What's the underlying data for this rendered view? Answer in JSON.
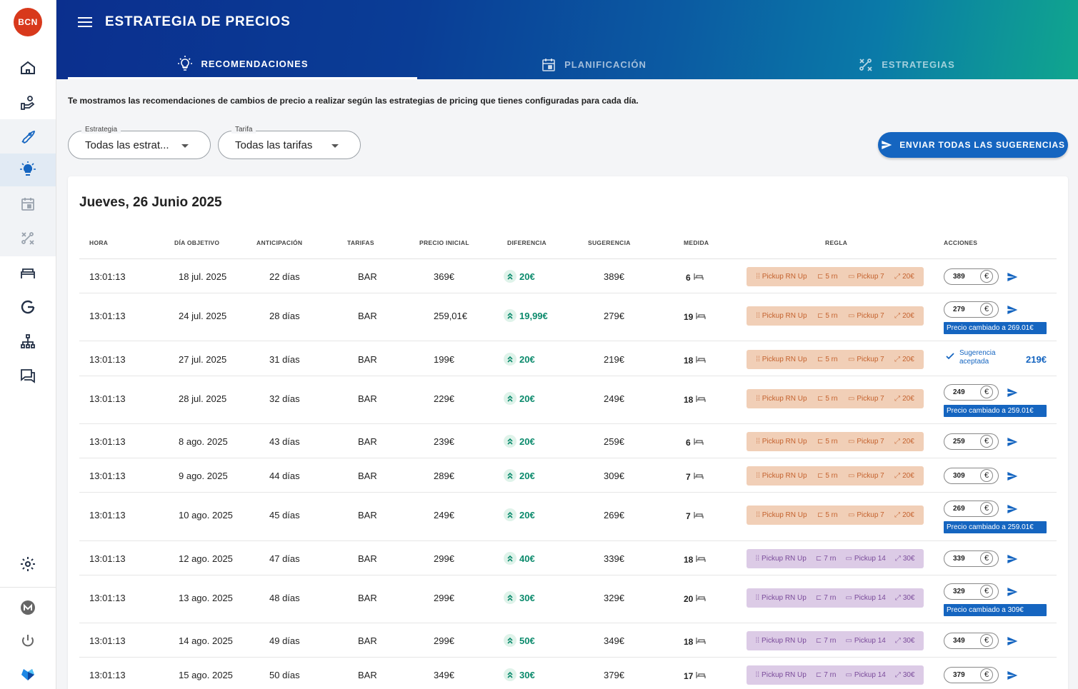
{
  "sidebar": {
    "avatar": "BCN",
    "items": [
      "home-icon",
      "hand-money-icon",
      "rocket-icon",
      "lightbulb-icon",
      "calendar-icon",
      "strategy-icon",
      "bed-icon",
      "google-icon",
      "sitemap-icon",
      "chat-icon"
    ],
    "bottom": [
      "gear-icon",
      "m-logo-icon",
      "power-icon",
      "brand-logo-icon"
    ]
  },
  "header": {
    "title": "ESTRATEGIA DE PRECIOS",
    "tabs": [
      {
        "label": "RECOMENDACIONES",
        "icon": "lightbulb-icon"
      },
      {
        "label": "PLANIFICACIÓN",
        "icon": "calendar-icon"
      },
      {
        "label": "ESTRATEGIAS",
        "icon": "strategy-icon"
      }
    ]
  },
  "intro": "Te mostramos las recomendaciones de cambios de precio a realizar según las estrategias de pricing que tienes configuradas para cada día.",
  "filters": {
    "strategy": {
      "label": "Estrategia",
      "value": "Todas las estrat..."
    },
    "rate": {
      "label": "Tarifa",
      "value": "Todas las tarifas"
    }
  },
  "send_all_label": "ENVIAR TODAS LAS SUGERENCIAS",
  "day_title": "Jueves, 26 Junio 2025",
  "columns": [
    "HORA",
    "DÍA OBJETIVO",
    "ANTICIPACIÓN",
    "TARIFAS",
    "PRECIO INICIAL",
    "DIFERENCIA",
    "SUGERENCIA",
    "MEDIDA",
    "REGLA",
    "ACCIONES"
  ],
  "rows": [
    {
      "hora": "13:01:13",
      "dia": "18 jul. 2025",
      "anticipacion": "22 días",
      "tarifa": "BAR",
      "precio": "369€",
      "diff": "20€",
      "sugerencia": "389€",
      "medida": "6",
      "rule": {
        "color": "orange",
        "name": "Pickup RN Up",
        "rn": "5 rn",
        "pickup": "Pickup 7",
        "amount": "20€"
      },
      "input": "389",
      "changed": ""
    },
    {
      "hora": "13:01:13",
      "dia": "24 jul. 2025",
      "anticipacion": "28 días",
      "tarifa": "BAR",
      "precio": "259,01€",
      "diff": "19,99€",
      "sugerencia": "279€",
      "medida": "19",
      "rule": {
        "color": "orange",
        "name": "Pickup RN Up",
        "rn": "5 rn",
        "pickup": "Pickup 7",
        "amount": "20€"
      },
      "input": "279",
      "changed": "Precio cambiado a 269.01€"
    },
    {
      "hora": "13:01:13",
      "dia": "27 jul. 2025",
      "anticipacion": "31 días",
      "tarifa": "BAR",
      "precio": "199€",
      "diff": "20€",
      "sugerencia": "219€",
      "medida": "18",
      "rule": {
        "color": "orange",
        "name": "Pickup RN Up",
        "rn": "5 rn",
        "pickup": "Pickup 7",
        "amount": "20€"
      },
      "accepted": {
        "line1": "Sugerencia",
        "line2": "aceptada",
        "price": "219€"
      }
    },
    {
      "hora": "13:01:13",
      "dia": "28 jul. 2025",
      "anticipacion": "32 días",
      "tarifa": "BAR",
      "precio": "229€",
      "diff": "20€",
      "sugerencia": "249€",
      "medida": "18",
      "rule": {
        "color": "orange",
        "name": "Pickup RN Up",
        "rn": "5 rn",
        "pickup": "Pickup 7",
        "amount": "20€"
      },
      "input": "249",
      "changed": "Precio cambiado a 259.01€"
    },
    {
      "hora": "13:01:13",
      "dia": "8 ago. 2025",
      "anticipacion": "43 días",
      "tarifa": "BAR",
      "precio": "239€",
      "diff": "20€",
      "sugerencia": "259€",
      "medida": "6",
      "rule": {
        "color": "orange",
        "name": "Pickup RN Up",
        "rn": "5 rn",
        "pickup": "Pickup 7",
        "amount": "20€"
      },
      "input": "259",
      "changed": ""
    },
    {
      "hora": "13:01:13",
      "dia": "9 ago. 2025",
      "anticipacion": "44 días",
      "tarifa": "BAR",
      "precio": "289€",
      "diff": "20€",
      "sugerencia": "309€",
      "medida": "7",
      "rule": {
        "color": "orange",
        "name": "Pickup RN Up",
        "rn": "5 rn",
        "pickup": "Pickup 7",
        "amount": "20€"
      },
      "input": "309",
      "changed": ""
    },
    {
      "hora": "13:01:13",
      "dia": "10 ago. 2025",
      "anticipacion": "45 días",
      "tarifa": "BAR",
      "precio": "249€",
      "diff": "20€",
      "sugerencia": "269€",
      "medida": "7",
      "rule": {
        "color": "orange",
        "name": "Pickup RN Up",
        "rn": "5 rn",
        "pickup": "Pickup 7",
        "amount": "20€"
      },
      "input": "269",
      "changed": "Precio cambiado a 259.01€"
    },
    {
      "hora": "13:01:13",
      "dia": "12 ago. 2025",
      "anticipacion": "47 días",
      "tarifa": "BAR",
      "precio": "299€",
      "diff": "40€",
      "sugerencia": "339€",
      "medida": "18",
      "rule": {
        "color": "purple",
        "name": "Pickup RN Up",
        "rn": "7 rn",
        "pickup": "Pickup 14",
        "amount": "30€"
      },
      "input": "339",
      "changed": ""
    },
    {
      "hora": "13:01:13",
      "dia": "13 ago. 2025",
      "anticipacion": "48 días",
      "tarifa": "BAR",
      "precio": "299€",
      "diff": "30€",
      "sugerencia": "329€",
      "medida": "20",
      "rule": {
        "color": "purple",
        "name": "Pickup RN Up",
        "rn": "7 rn",
        "pickup": "Pickup 14",
        "amount": "30€"
      },
      "input": "329",
      "changed": "Precio cambiado a 309€"
    },
    {
      "hora": "13:01:13",
      "dia": "14 ago. 2025",
      "anticipacion": "49 días",
      "tarifa": "BAR",
      "precio": "299€",
      "diff": "50€",
      "sugerencia": "349€",
      "medida": "18",
      "rule": {
        "color": "purple",
        "name": "Pickup RN Up",
        "rn": "7 rn",
        "pickup": "Pickup 14",
        "amount": "30€"
      },
      "input": "349",
      "changed": ""
    },
    {
      "hora": "13:01:13",
      "dia": "15 ago. 2025",
      "anticipacion": "50 días",
      "tarifa": "BAR",
      "precio": "349€",
      "diff": "30€",
      "sugerencia": "379€",
      "medida": "17",
      "rule": {
        "color": "purple",
        "name": "Pickup RN Up",
        "rn": "7 rn",
        "pickup": "Pickup 14",
        "amount": "30€"
      },
      "input": "379",
      "changed": ""
    }
  ]
}
